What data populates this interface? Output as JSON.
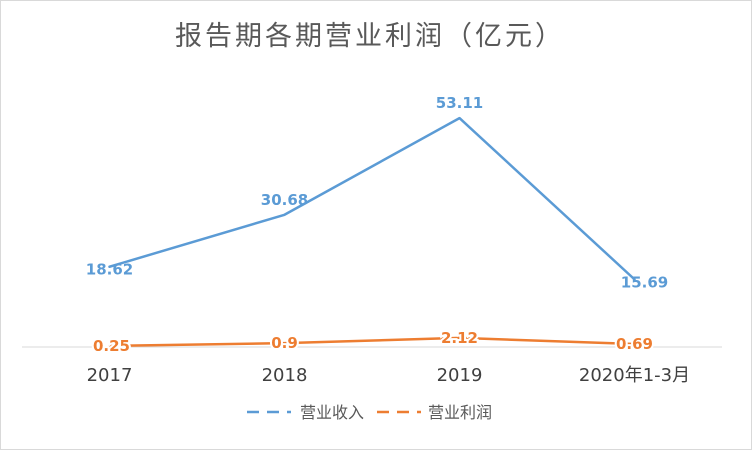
{
  "chart_data": {
    "type": "line",
    "title": "报告期各期营业利润（亿元）",
    "categories": [
      "2017",
      "2018",
      "2019",
      "2020年1-3月"
    ],
    "series": [
      {
        "name": "营业收入",
        "values": [
          18.62,
          30.68,
          53.11,
          15.69
        ],
        "labels": [
          "18.62",
          "30.68",
          "53.11",
          "15.69"
        ],
        "color": "#5b9bd5"
      },
      {
        "name": "营业利润",
        "values": [
          0.25,
          0.9,
          2.12,
          0.69
        ],
        "labels": [
          "0.25",
          "0.9",
          "2.12",
          "0.69"
        ],
        "color": "#ed7d31"
      }
    ],
    "xlabel": "",
    "ylabel": "",
    "ylim": [
      0,
      60
    ],
    "grid": false,
    "legend": "bottom",
    "axis_color": "#d9d9d9"
  }
}
